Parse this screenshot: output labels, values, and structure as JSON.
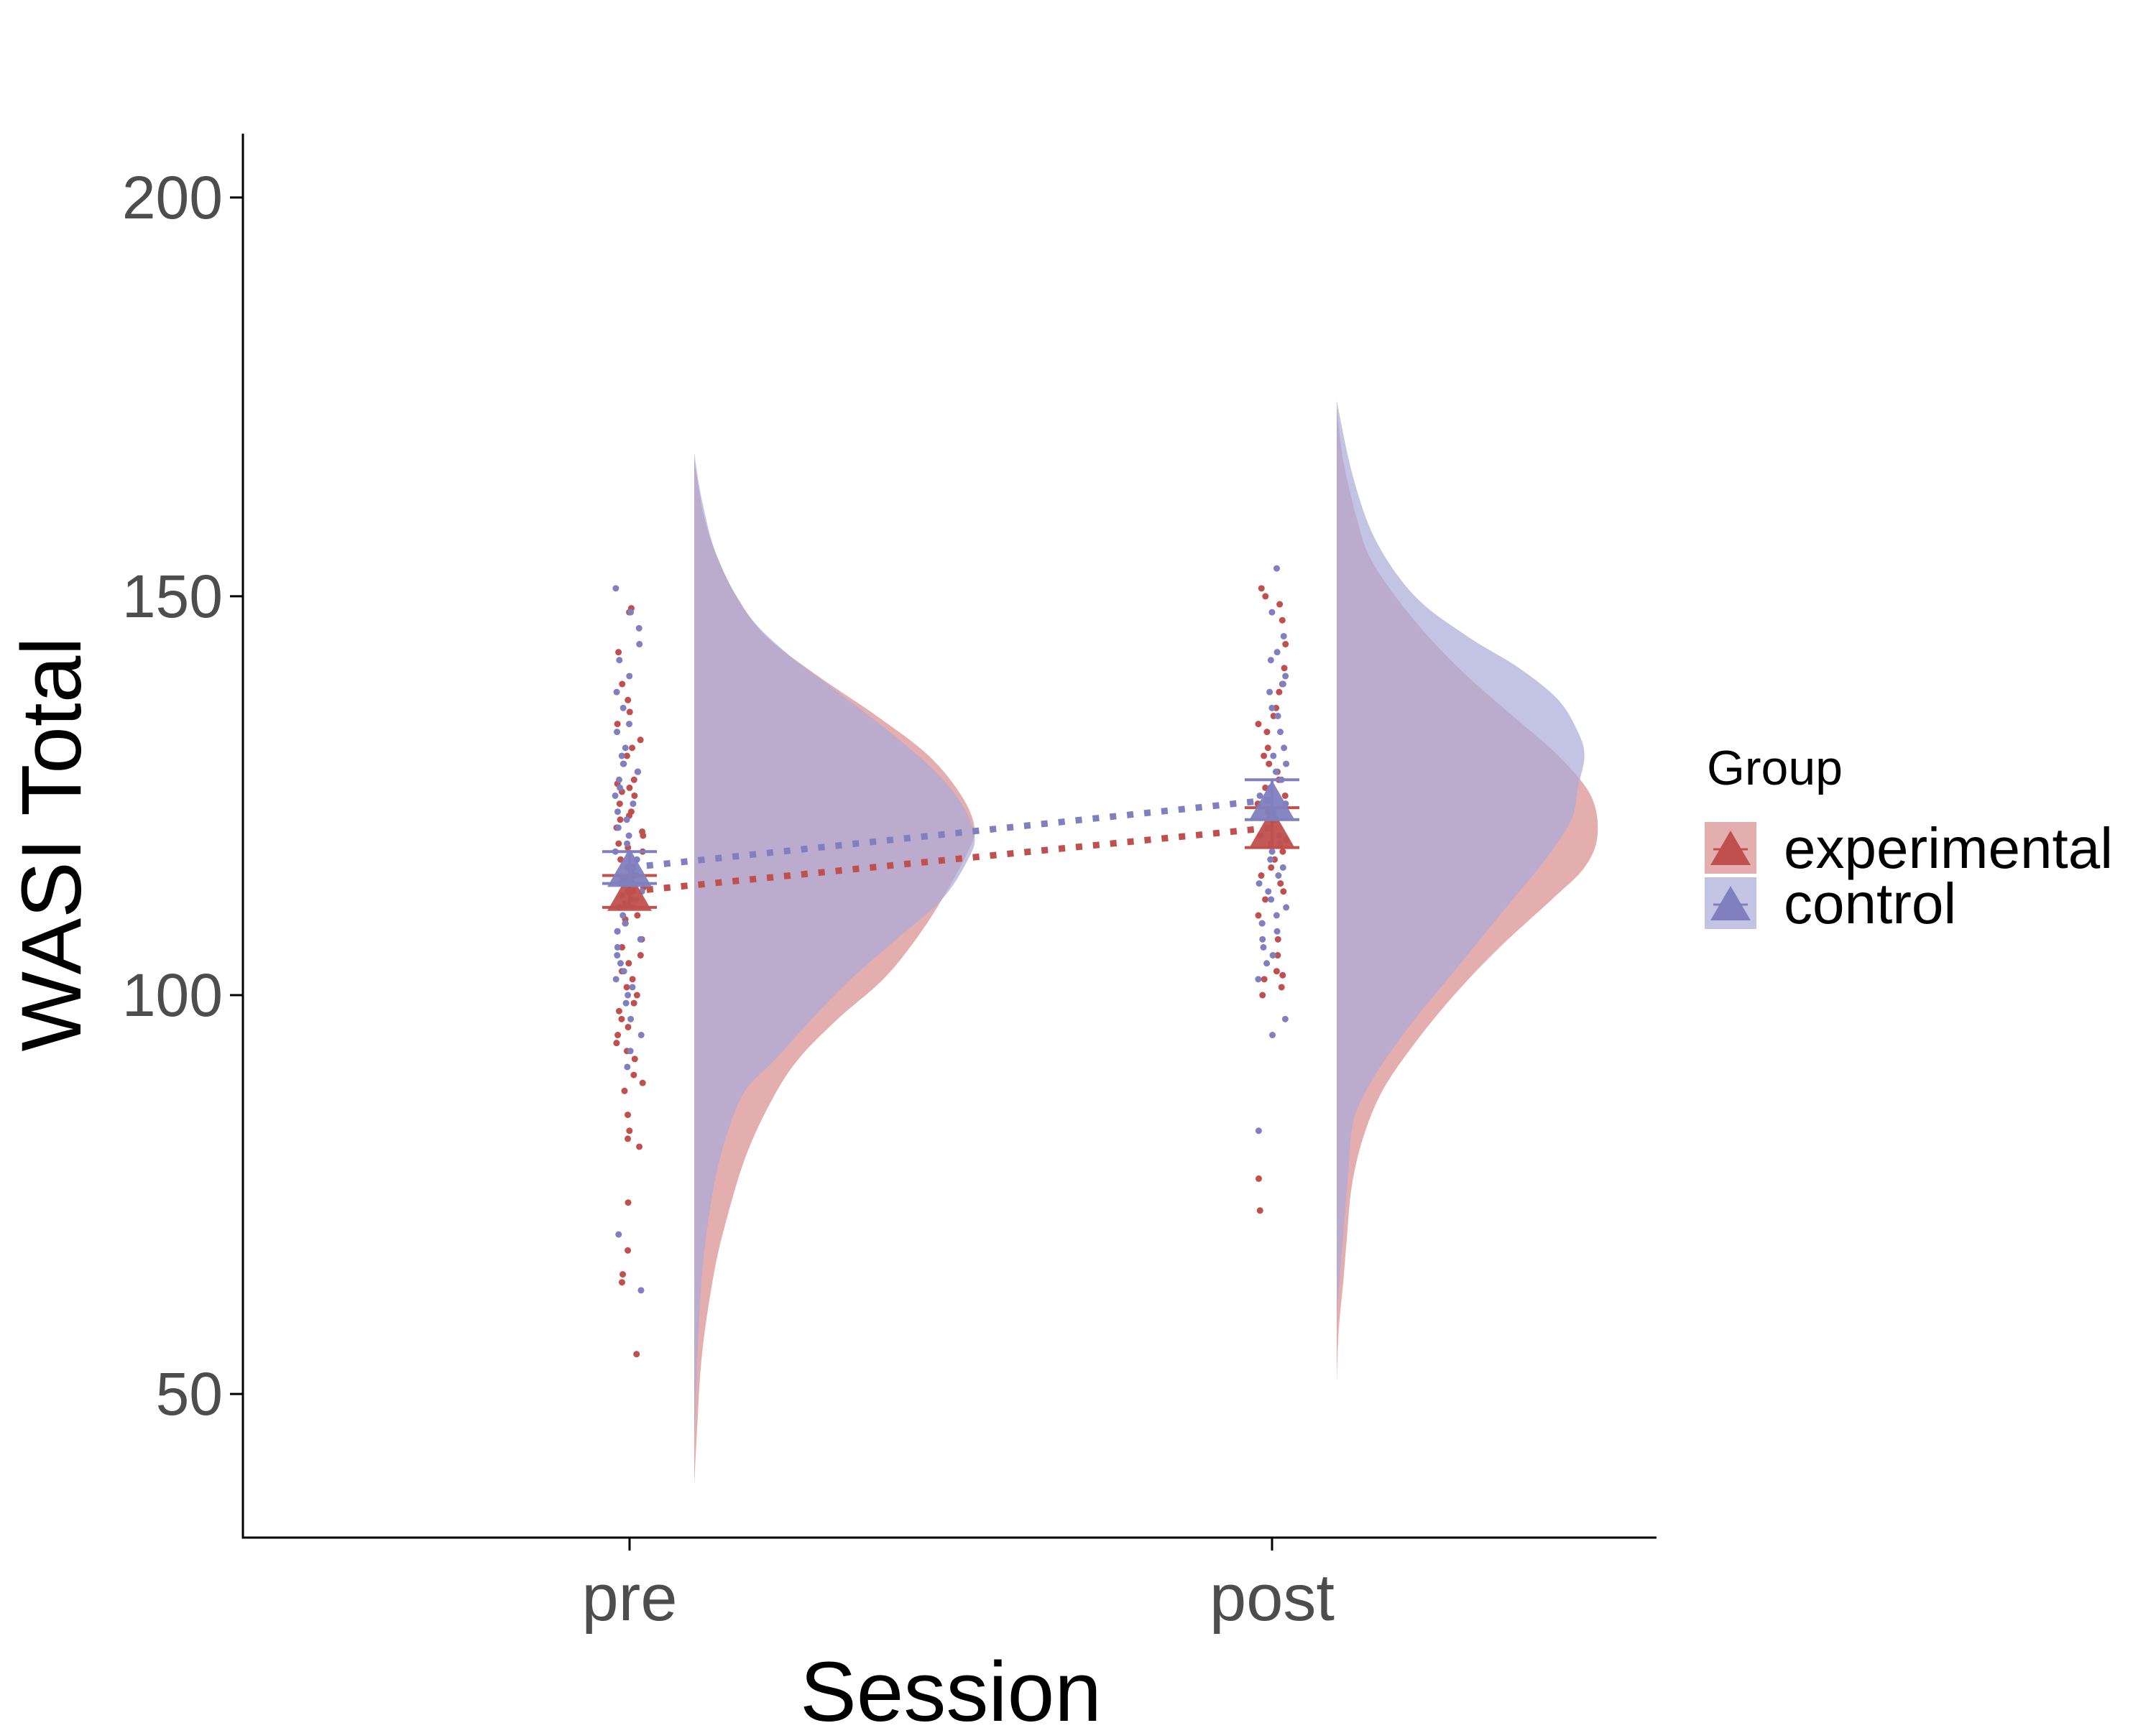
{
  "chart_data": {
    "type": "raincloud",
    "xlabel": "Session",
    "ylabel": "WASI Total",
    "categories": [
      "pre",
      "post"
    ],
    "ylim": [
      32,
      208
    ],
    "yticks": [
      50,
      100,
      150,
      200
    ],
    "legend": {
      "title": "Group",
      "position": "right",
      "entries": [
        "experimental",
        "control"
      ]
    },
    "colors": {
      "experimental": "#c0504d",
      "experimental_fill": "#d98c8b",
      "control": "#8080c0",
      "control_fill": "#aaaad8",
      "axis": "#000000",
      "tick_label": "#4d4d4d"
    },
    "series": [
      {
        "name": "experimental",
        "means": [
          113,
          121
        ],
        "se_low": [
          111,
          118.5
        ],
        "se_high": [
          115,
          123.5
        ],
        "density": [
          {
            "ymin": 38.5,
            "ymax": 167,
            "peak": 0.43,
            "points": [
              [
                38.5,
                0
              ],
              [
                45,
                0.004
              ],
              [
                55,
                0.012
              ],
              [
                65,
                0.03
              ],
              [
                72,
                0.05
              ],
              [
                80,
                0.08
              ],
              [
                87,
                0.12
              ],
              [
                92,
                0.16
              ],
              [
                97,
                0.22
              ],
              [
                102,
                0.29
              ],
              [
                107,
                0.34
              ],
              [
                112,
                0.38
              ],
              [
                118,
                0.42
              ],
              [
                121,
                0.43
              ],
              [
                125,
                0.41
              ],
              [
                130,
                0.36
              ],
              [
                135,
                0.28
              ],
              [
                140,
                0.19
              ],
              [
                145,
                0.11
              ],
              [
                150,
                0.065
              ],
              [
                155,
                0.035
              ],
              [
                160,
                0.015
              ],
              [
                167,
                0
              ]
            ]
          },
          {
            "ymin": 51.5,
            "ymax": 173.5,
            "peak": 0.4,
            "points": [
              [
                51.5,
                0
              ],
              [
                58,
                0.003
              ],
              [
                64,
                0.01
              ],
              [
                70,
                0.016
              ],
              [
                76,
                0.023
              ],
              [
                82,
                0.04
              ],
              [
                88,
                0.07
              ],
              [
                94,
                0.12
              ],
              [
                100,
                0.18
              ],
              [
                106,
                0.25
              ],
              [
                112,
                0.33
              ],
              [
                116,
                0.38
              ],
              [
                120,
                0.4
              ],
              [
                125,
                0.39
              ],
              [
                130,
                0.34
              ],
              [
                135,
                0.27
              ],
              [
                140,
                0.2
              ],
              [
                145,
                0.14
              ],
              [
                150,
                0.09
              ],
              [
                155,
                0.05
              ],
              [
                160,
                0.03
              ],
              [
                167,
                0.01
              ],
              [
                173.5,
                0
              ]
            ]
          }
        ],
        "points": [
          [
            148,
            148.5,
            143,
            139,
            137,
            135.5,
            134,
            132,
            131,
            130,
            129,
            128,
            127,
            126.5,
            126,
            125.5,
            125,
            124,
            123,
            122.5,
            122,
            121,
            120.5,
            120,
            119,
            118.5,
            118,
            117,
            116,
            115.5,
            115,
            114.5,
            114,
            113.5,
            113,
            112.5,
            112,
            111.5,
            111,
            110,
            109.5,
            109,
            108,
            107,
            106,
            105,
            104,
            103,
            102,
            101,
            100,
            99,
            98,
            97,
            96,
            95,
            94,
            93,
            92,
            90,
            89,
            88,
            85,
            83,
            82,
            81,
            74,
            68,
            65,
            64,
            55
          ],
          [
            151,
            150,
            149,
            147,
            144,
            141,
            139,
            138,
            136,
            135,
            134,
            133,
            131,
            130,
            129,
            128,
            127,
            126,
            125,
            124,
            123,
            122,
            121,
            120,
            119.5,
            119,
            118,
            117,
            116,
            115,
            114,
            113,
            112,
            110,
            109,
            107,
            105,
            103,
            102.5,
            102,
            101,
            100,
            77,
            73
          ]
        ]
      },
      {
        "name": "control",
        "means": [
          116,
          124.5
        ],
        "se_low": [
          114,
          122
        ],
        "se_high": [
          118,
          127
        ],
        "density": [
          {
            "ymin": 44,
            "ymax": 168,
            "peak": 0.43,
            "points": [
              [
                44,
                0
              ],
              [
                55,
                0.005
              ],
              [
                65,
                0.012
              ],
              [
                72,
                0.022
              ],
              [
                78,
                0.035
              ],
              [
                83,
                0.052
              ],
              [
                88,
                0.078
              ],
              [
                92,
                0.125
              ],
              [
                97,
                0.18
              ],
              [
                102,
                0.24
              ],
              [
                107,
                0.31
              ],
              [
                112,
                0.38
              ],
              [
                117,
                0.42
              ],
              [
                120,
                0.43
              ],
              [
                124,
                0.41
              ],
              [
                128,
                0.37
              ],
              [
                133,
                0.3
              ],
              [
                138,
                0.22
              ],
              [
                143,
                0.14
              ],
              [
                148,
                0.08
              ],
              [
                155,
                0.035
              ],
              [
                162,
                0.012
              ],
              [
                168,
                0
              ]
            ]
          },
          {
            "ymin": 60,
            "ymax": 174.5,
            "peak": 0.38,
            "points": [
              [
                60,
                0
              ],
              [
                66,
                0.006
              ],
              [
                72,
                0.012
              ],
              [
                78,
                0.018
              ],
              [
                84,
                0.025
              ],
              [
                88,
                0.045
              ],
              [
                92,
                0.075
              ],
              [
                97,
                0.12
              ],
              [
                102,
                0.17
              ],
              [
                107,
                0.22
              ],
              [
                112,
                0.27
              ],
              [
                117,
                0.32
              ],
              [
                122,
                0.36
              ],
              [
                126,
                0.37
              ],
              [
                130,
                0.38
              ],
              [
                133,
                0.37
              ],
              [
                137,
                0.34
              ],
              [
                141,
                0.28
              ],
              [
                145,
                0.2
              ],
              [
                150,
                0.12
              ],
              [
                157,
                0.06
              ],
              [
                165,
                0.025
              ],
              [
                174.5,
                0
              ]
            ]
          }
        ],
        "points": [
          [
            151,
            148,
            146,
            144,
            142,
            140,
            138,
            136,
            134,
            133,
            131,
            130,
            129,
            128,
            127,
            126,
            125,
            124,
            123,
            122,
            121,
            120,
            119,
            118,
            117,
            116,
            115,
            114,
            113,
            112,
            111,
            110,
            109,
            108,
            107,
            106,
            105,
            104,
            103,
            102,
            101,
            100,
            99,
            97,
            95,
            93,
            91,
            70,
            63
          ],
          [
            153.5,
            148,
            145,
            143,
            142,
            140,
            139,
            138,
            136,
            135,
            133,
            131,
            130,
            129,
            128,
            127,
            126,
            125,
            124,
            123,
            122,
            121,
            120,
            119,
            118,
            117,
            116,
            115,
            114,
            113,
            112,
            111,
            110,
            109,
            108,
            107,
            106,
            105,
            104,
            102,
            97,
            95,
            83
          ]
        ]
      }
    ]
  }
}
